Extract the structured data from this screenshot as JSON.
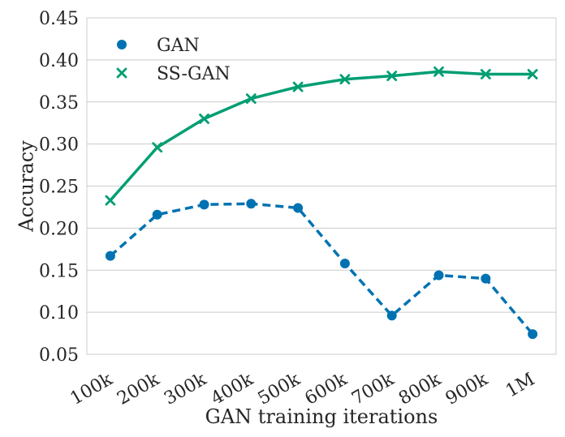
{
  "chart_data": {
    "type": "line",
    "title": "",
    "xlabel": "GAN training iterations",
    "ylabel": "Accuracy",
    "categories": [
      "100k",
      "200k",
      "300k",
      "400k",
      "500k",
      "600k",
      "700k",
      "800k",
      "900k",
      "1M"
    ],
    "ylim": [
      0.05,
      0.45
    ],
    "yticks": [
      "0.05",
      "0.10",
      "0.15",
      "0.20",
      "0.25",
      "0.30",
      "0.35",
      "0.40",
      "0.45"
    ],
    "grid": "horizontal",
    "legend_position": "top-left",
    "series": [
      {
        "name": "GAN",
        "color": "#0072b2",
        "marker": "circle",
        "line_style": "dashed",
        "values": [
          0.167,
          0.216,
          0.228,
          0.229,
          0.224,
          0.158,
          0.096,
          0.144,
          0.14,
          0.074
        ]
      },
      {
        "name": "SS-GAN",
        "color": "#009e73",
        "marker": "x",
        "line_style": "solid",
        "values": [
          0.233,
          0.296,
          0.33,
          0.354,
          0.368,
          0.377,
          0.381,
          0.386,
          0.383,
          0.383
        ]
      }
    ]
  }
}
